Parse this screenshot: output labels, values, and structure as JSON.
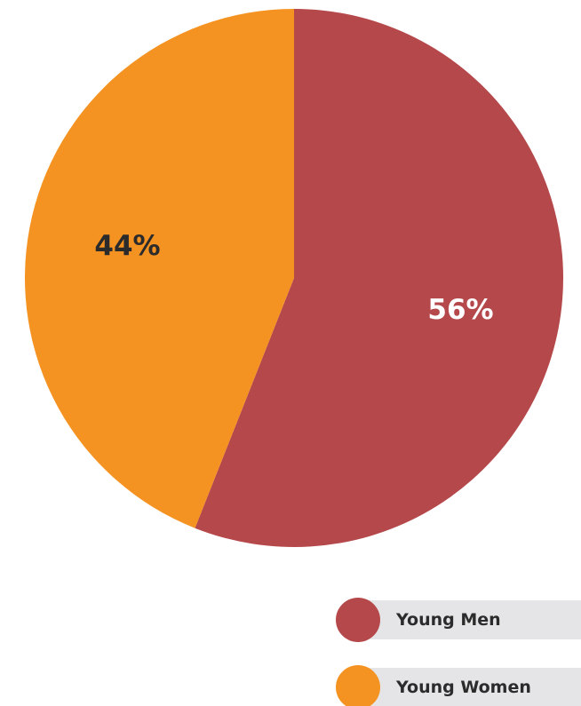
{
  "chart_data": {
    "type": "pie",
    "title": "",
    "slices": [
      {
        "name": "Young Men",
        "value": 56,
        "label": "56%",
        "color": "#b5484a",
        "label_color": "#ffffff"
      },
      {
        "name": "Young Women",
        "value": 44,
        "label": "44%",
        "color": "#f59322",
        "label_color": "#2b2b2b"
      }
    ],
    "start_angle": "12 o'clock",
    "direction": "clockwise",
    "legend": {
      "position": "bottom-right",
      "items": [
        {
          "label": "Young Men",
          "color": "#b5484a"
        },
        {
          "label": "Young Women",
          "color": "#f59322"
        }
      ]
    }
  }
}
